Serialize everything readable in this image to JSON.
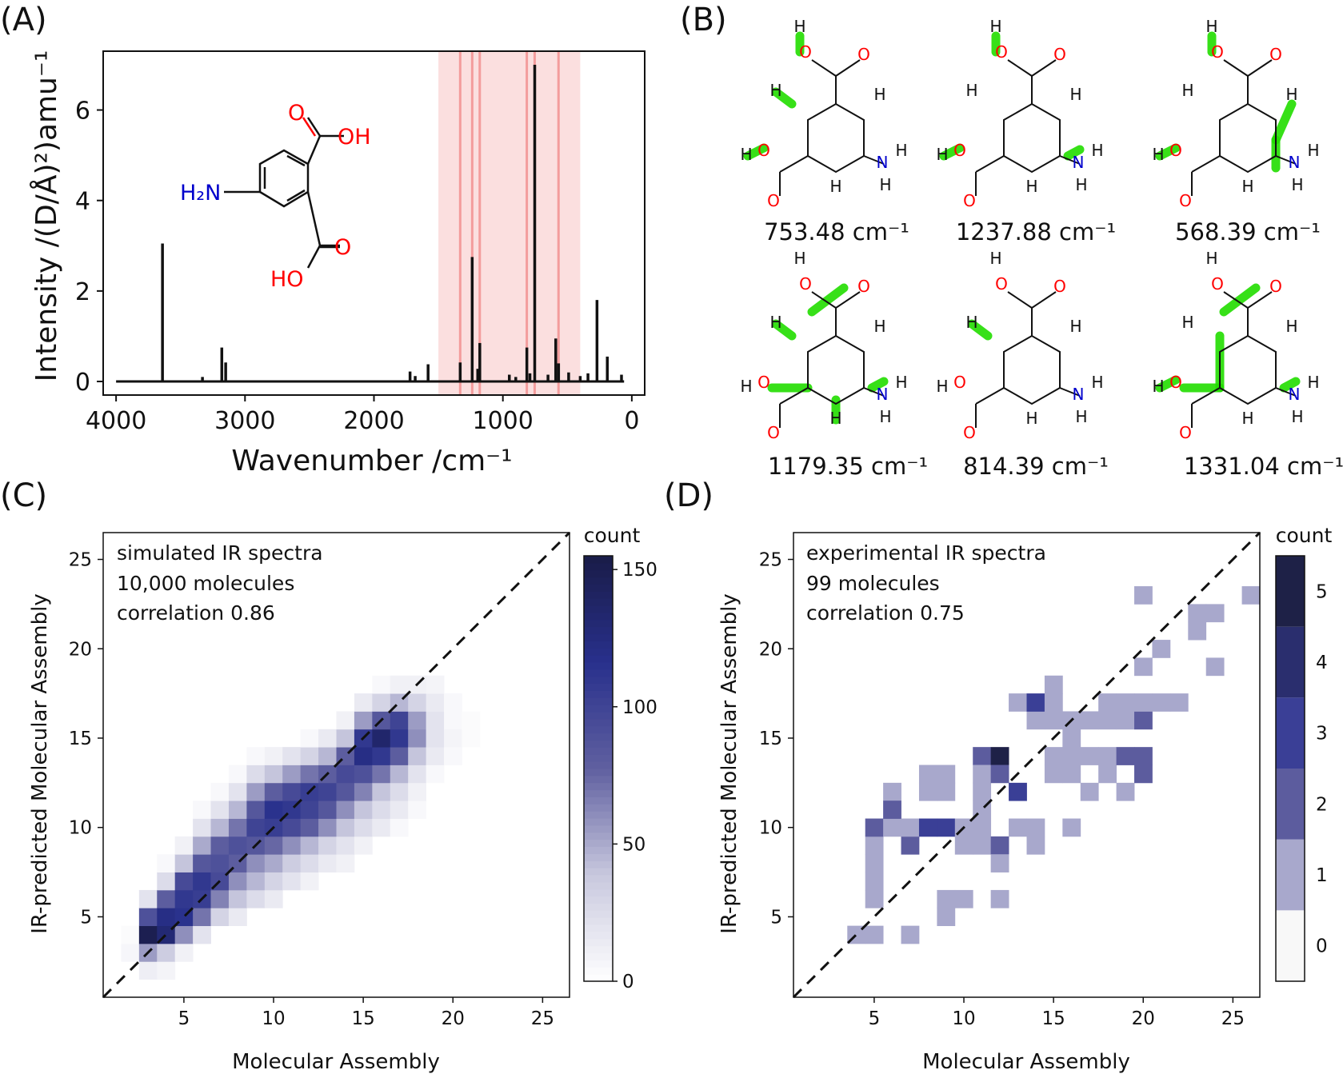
{
  "panels": {
    "a": {
      "label": "(A)"
    },
    "b": {
      "label": "(B)"
    },
    "c": {
      "label": "(C)"
    },
    "d": {
      "label": "(D)"
    }
  },
  "molecule": {
    "top_O": "O",
    "top_OH": "OH",
    "amine": "H₂N",
    "bottom_O": "O",
    "bottom_OH": "HO",
    "color_o": "#ff0000",
    "color_n": "#0000cc",
    "color_highlight": "#22dd00"
  },
  "modes": [
    {
      "freq": "753.48 cm⁻¹"
    },
    {
      "freq": "1237.88 cm⁻¹"
    },
    {
      "freq": "568.39 cm⁻¹"
    },
    {
      "freq": "1179.35 cm⁻¹"
    },
    {
      "freq": "814.39 cm⁻¹"
    },
    {
      "freq": "1331.04 cm⁻¹"
    }
  ],
  "chart_data": [
    {
      "id": "A",
      "type": "bar",
      "xlabel": "Wavenumber /cm⁻¹",
      "ylabel": "Intensity /(D/Å)²)amu⁻¹",
      "xlim": [
        4000,
        0
      ],
      "ylim": [
        -0.3,
        7.3
      ],
      "xticks": [
        "4000",
        "3000",
        "2000",
        "1000",
        "0"
      ],
      "yticks": [
        "0",
        "2",
        "4",
        "6"
      ],
      "highlight_range": [
        1500,
        400
      ],
      "highlight_color": "#f4a4a4",
      "highlight_lines": [
        1331.04,
        1237.88,
        1179.35,
        814.39,
        753.48,
        568.39
      ],
      "peaks": [
        {
          "x": 3640,
          "y": 3.05
        },
        {
          "x": 3330,
          "y": 0.1
        },
        {
          "x": 3180,
          "y": 0.75
        },
        {
          "x": 3150,
          "y": 0.42
        },
        {
          "x": 1720,
          "y": 0.22
        },
        {
          "x": 1680,
          "y": 0.12
        },
        {
          "x": 1580,
          "y": 0.38
        },
        {
          "x": 1331,
          "y": 0.42
        },
        {
          "x": 1238,
          "y": 2.75
        },
        {
          "x": 1195,
          "y": 0.28
        },
        {
          "x": 1179,
          "y": 0.85
        },
        {
          "x": 950,
          "y": 0.15
        },
        {
          "x": 900,
          "y": 0.1
        },
        {
          "x": 814,
          "y": 0.75
        },
        {
          "x": 790,
          "y": 0.18
        },
        {
          "x": 753,
          "y": 7.0
        },
        {
          "x": 650,
          "y": 0.15
        },
        {
          "x": 590,
          "y": 0.95
        },
        {
          "x": 568,
          "y": 0.4
        },
        {
          "x": 490,
          "y": 0.2
        },
        {
          "x": 400,
          "y": 0.12
        },
        {
          "x": 340,
          "y": 0.18
        },
        {
          "x": 270,
          "y": 1.8
        },
        {
          "x": 190,
          "y": 0.55
        },
        {
          "x": 80,
          "y": 0.15
        }
      ]
    },
    {
      "id": "C",
      "type": "heatmap",
      "xlabel": "Molecular Assembly",
      "ylabel": "IR-predicted Molecular Assembly",
      "xlim": [
        0.5,
        26.5
      ],
      "ylim": [
        0.5,
        26.5
      ],
      "xticks": [
        5,
        10,
        15,
        20,
        25
      ],
      "yticks": [
        5,
        10,
        15,
        20,
        25
      ],
      "annotation": [
        "simulated IR spectra",
        "10,000 molecules",
        "correlation 0.86"
      ],
      "colorbar": {
        "label": "count",
        "min": 0,
        "max": 155,
        "ticks": [
          0,
          50,
          100,
          150
        ]
      },
      "cells": [
        [
          2,
          3,
          6
        ],
        [
          2,
          4,
          3
        ],
        [
          3,
          2,
          12
        ],
        [
          3,
          3,
          55
        ],
        [
          3,
          4,
          150
        ],
        [
          3,
          5,
          90
        ],
        [
          3,
          6,
          20
        ],
        [
          4,
          2,
          8
        ],
        [
          4,
          3,
          35
        ],
        [
          4,
          4,
          130
        ],
        [
          4,
          5,
          120
        ],
        [
          4,
          6,
          80
        ],
        [
          4,
          7,
          25
        ],
        [
          4,
          8,
          5
        ],
        [
          5,
          3,
          10
        ],
        [
          5,
          4,
          60
        ],
        [
          5,
          5,
          115
        ],
        [
          5,
          6,
          110
        ],
        [
          5,
          7,
          95
        ],
        [
          5,
          8,
          40
        ],
        [
          5,
          9,
          10
        ],
        [
          6,
          4,
          20
        ],
        [
          6,
          5,
          70
        ],
        [
          6,
          6,
          105
        ],
        [
          6,
          7,
          110
        ],
        [
          6,
          8,
          85
        ],
        [
          6,
          9,
          50
        ],
        [
          6,
          10,
          20
        ],
        [
          6,
          11,
          5
        ],
        [
          7,
          5,
          30
        ],
        [
          7,
          6,
          65
        ],
        [
          7,
          7,
          95
        ],
        [
          7,
          8,
          90
        ],
        [
          7,
          9,
          80
        ],
        [
          7,
          10,
          45
        ],
        [
          7,
          11,
          20
        ],
        [
          7,
          12,
          5
        ],
        [
          8,
          5,
          15
        ],
        [
          8,
          6,
          40
        ],
        [
          8,
          7,
          60
        ],
        [
          8,
          8,
          80
        ],
        [
          8,
          9,
          90
        ],
        [
          8,
          10,
          70
        ],
        [
          8,
          11,
          45
        ],
        [
          8,
          12,
          20
        ],
        [
          8,
          13,
          5
        ],
        [
          9,
          6,
          25
        ],
        [
          9,
          7,
          45
        ],
        [
          9,
          8,
          60
        ],
        [
          9,
          9,
          85
        ],
        [
          9,
          10,
          100
        ],
        [
          9,
          11,
          85
        ],
        [
          9,
          12,
          55
        ],
        [
          9,
          13,
          25
        ],
        [
          9,
          14,
          5
        ],
        [
          10,
          6,
          15
        ],
        [
          10,
          7,
          30
        ],
        [
          10,
          8,
          50
        ],
        [
          10,
          9,
          75
        ],
        [
          10,
          10,
          105
        ],
        [
          10,
          11,
          115
        ],
        [
          10,
          12,
          80
        ],
        [
          10,
          13,
          40
        ],
        [
          10,
          14,
          10
        ],
        [
          11,
          7,
          20
        ],
        [
          11,
          8,
          35
        ],
        [
          11,
          9,
          60
        ],
        [
          11,
          10,
          95
        ],
        [
          11,
          11,
          110
        ],
        [
          11,
          12,
          95
        ],
        [
          11,
          13,
          55
        ],
        [
          11,
          14,
          20
        ],
        [
          12,
          7,
          10
        ],
        [
          12,
          8,
          25
        ],
        [
          12,
          9,
          45
        ],
        [
          12,
          10,
          80
        ],
        [
          12,
          11,
          100
        ],
        [
          12,
          12,
          105
        ],
        [
          12,
          13,
          70
        ],
        [
          12,
          14,
          30
        ],
        [
          12,
          15,
          5
        ],
        [
          13,
          8,
          15
        ],
        [
          13,
          9,
          30
        ],
        [
          13,
          10,
          60
        ],
        [
          13,
          11,
          85
        ],
        [
          13,
          12,
          100
        ],
        [
          13,
          13,
          80
        ],
        [
          13,
          14,
          45
        ],
        [
          13,
          15,
          15
        ],
        [
          14,
          8,
          10
        ],
        [
          14,
          9,
          20
        ],
        [
          14,
          10,
          40
        ],
        [
          14,
          11,
          60
        ],
        [
          14,
          12,
          85
        ],
        [
          14,
          13,
          95
        ],
        [
          14,
          14,
          80
        ],
        [
          14,
          15,
          40
        ],
        [
          14,
          16,
          10
        ],
        [
          15,
          9,
          10
        ],
        [
          15,
          10,
          25
        ],
        [
          15,
          11,
          40
        ],
        [
          15,
          12,
          65
        ],
        [
          15,
          13,
          90
        ],
        [
          15,
          14,
          120
        ],
        [
          15,
          15,
          110
        ],
        [
          15,
          16,
          55
        ],
        [
          15,
          17,
          15
        ],
        [
          16,
          10,
          15
        ],
        [
          16,
          11,
          25
        ],
        [
          16,
          12,
          40
        ],
        [
          16,
          13,
          70
        ],
        [
          16,
          14,
          110
        ],
        [
          16,
          15,
          135
        ],
        [
          16,
          16,
          85
        ],
        [
          16,
          17,
          30
        ],
        [
          16,
          18,
          5
        ],
        [
          17,
          10,
          5
        ],
        [
          17,
          11,
          15
        ],
        [
          17,
          12,
          25
        ],
        [
          17,
          13,
          45
        ],
        [
          17,
          14,
          80
        ],
        [
          17,
          15,
          110
        ],
        [
          17,
          16,
          100
        ],
        [
          17,
          17,
          45
        ],
        [
          17,
          18,
          10
        ],
        [
          18,
          11,
          5
        ],
        [
          18,
          12,
          10
        ],
        [
          18,
          13,
          20
        ],
        [
          18,
          14,
          40
        ],
        [
          18,
          15,
          60
        ],
        [
          18,
          16,
          55
        ],
        [
          18,
          17,
          30
        ],
        [
          18,
          18,
          10
        ],
        [
          19,
          13,
          5
        ],
        [
          19,
          14,
          15
        ],
        [
          19,
          15,
          20
        ],
        [
          19,
          16,
          20
        ],
        [
          19,
          17,
          15
        ],
        [
          19,
          18,
          8
        ],
        [
          20,
          14,
          5
        ],
        [
          20,
          15,
          8
        ],
        [
          20,
          16,
          5
        ],
        [
          20,
          17,
          5
        ],
        [
          21,
          15,
          3
        ],
        [
          21,
          16,
          3
        ]
      ]
    },
    {
      "id": "D",
      "type": "heatmap",
      "xlabel": "Molecular Assembly",
      "ylabel": "IR-predicted Molecular Assembly",
      "xlim": [
        0.5,
        26.5
      ],
      "ylim": [
        0.5,
        26.5
      ],
      "xticks": [
        5,
        10,
        15,
        20,
        25
      ],
      "yticks": [
        5,
        10,
        15,
        20,
        25
      ],
      "annotation": [
        "experimental IR spectra",
        "99 molecules",
        "correlation 0.75"
      ],
      "colorbar": {
        "label": "count",
        "levels": [
          0,
          1,
          2,
          3,
          4,
          5
        ]
      },
      "cells": [
        [
          4,
          4,
          1
        ],
        [
          5,
          4,
          1
        ],
        [
          5,
          6,
          1
        ],
        [
          5,
          7,
          1
        ],
        [
          5,
          8,
          1
        ],
        [
          5,
          9,
          1
        ],
        [
          5,
          10,
          2
        ],
        [
          6,
          10,
          1
        ],
        [
          6,
          12,
          1
        ],
        [
          6,
          11,
          2
        ],
        [
          7,
          4,
          1
        ],
        [
          7,
          9,
          2
        ],
        [
          7,
          10,
          1
        ],
        [
          8,
          10,
          3
        ],
        [
          8,
          12,
          1
        ],
        [
          8,
          13,
          1
        ],
        [
          9,
          10,
          3
        ],
        [
          9,
          12,
          1
        ],
        [
          9,
          13,
          1
        ],
        [
          9,
          6,
          1
        ],
        [
          9,
          5,
          1
        ],
        [
          10,
          6,
          1
        ],
        [
          10,
          9,
          1
        ],
        [
          10,
          10,
          1
        ],
        [
          11,
          9,
          1
        ],
        [
          11,
          10,
          1
        ],
        [
          11,
          11,
          1
        ],
        [
          11,
          12,
          1
        ],
        [
          11,
          14,
          2
        ],
        [
          11,
          13,
          1
        ],
        [
          12,
          9,
          2
        ],
        [
          12,
          8,
          1
        ],
        [
          12,
          6,
          1
        ],
        [
          12,
          14,
          5
        ],
        [
          12,
          13,
          2
        ],
        [
          13,
          17,
          1
        ],
        [
          13,
          12,
          3
        ],
        [
          13,
          10,
          1
        ],
        [
          14,
          9,
          1
        ],
        [
          14,
          10,
          1
        ],
        [
          14,
          16,
          1
        ],
        [
          14,
          17,
          3
        ],
        [
          15,
          16,
          1
        ],
        [
          15,
          17,
          1
        ],
        [
          15,
          13,
          1
        ],
        [
          15,
          14,
          1
        ],
        [
          15,
          18,
          1
        ],
        [
          16,
          13,
          1
        ],
        [
          16,
          14,
          1
        ],
        [
          16,
          16,
          1
        ],
        [
          16,
          15,
          1
        ],
        [
          16,
          10,
          1
        ],
        [
          17,
          16,
          1
        ],
        [
          17,
          12,
          1
        ],
        [
          17,
          14,
          1
        ],
        [
          18,
          16,
          1
        ],
        [
          18,
          17,
          1
        ],
        [
          18,
          13,
          1
        ],
        [
          18,
          14,
          1
        ],
        [
          19,
          12,
          1
        ],
        [
          19,
          14,
          2
        ],
        [
          19,
          16,
          1
        ],
        [
          19,
          17,
          1
        ],
        [
          20,
          13,
          2
        ],
        [
          20,
          14,
          2
        ],
        [
          20,
          16,
          2
        ],
        [
          20,
          17,
          1
        ],
        [
          20,
          19,
          1
        ],
        [
          20,
          23,
          1
        ],
        [
          21,
          17,
          1
        ],
        [
          21,
          20,
          1
        ],
        [
          22,
          17,
          1
        ],
        [
          23,
          22,
          1
        ],
        [
          23,
          21,
          1
        ],
        [
          24,
          22,
          1
        ],
        [
          24,
          19,
          1
        ],
        [
          26,
          23,
          1
        ]
      ]
    }
  ]
}
